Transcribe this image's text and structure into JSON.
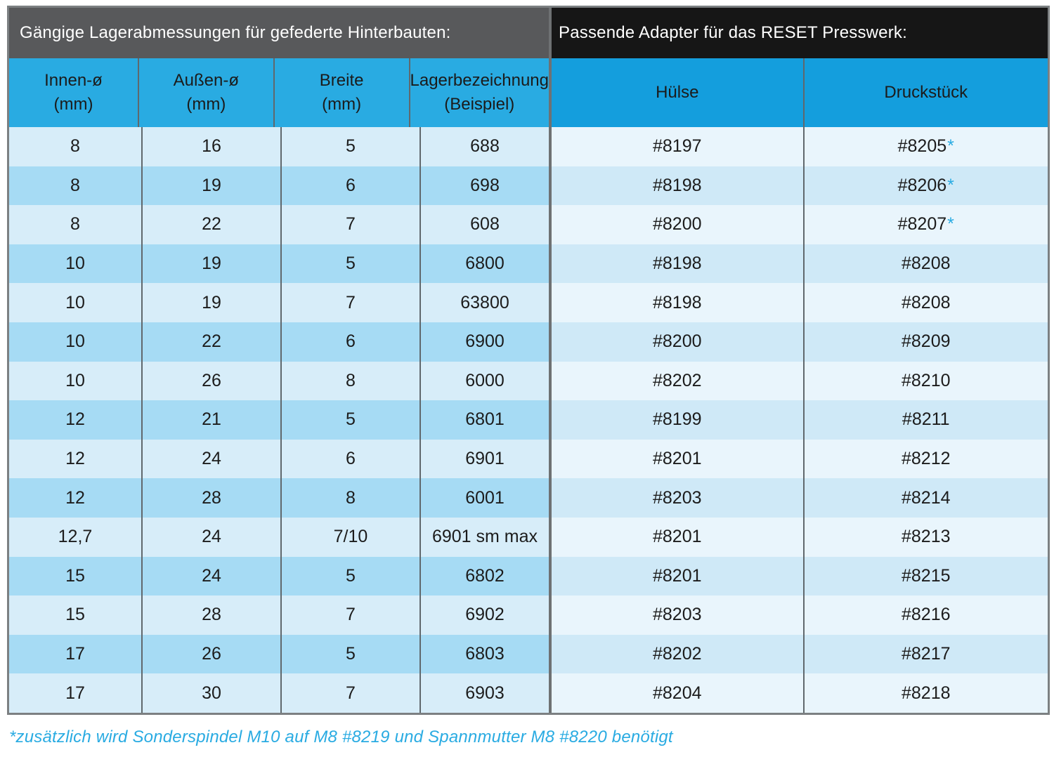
{
  "left_table": {
    "title": "Gängige Lagerabmessungen für gefederte Hinterbauten:",
    "columns": [
      {
        "line1": "Innen-ø",
        "line2": "(mm)"
      },
      {
        "line1": "Außen-ø",
        "line2": "(mm)"
      },
      {
        "line1": "Breite",
        "line2": "(mm)"
      },
      {
        "line1": "Lagerbezeichnung",
        "line2": "(Beispiel)"
      }
    ],
    "rows": [
      [
        "8",
        "16",
        "5",
        "688"
      ],
      [
        "8",
        "19",
        "6",
        "698"
      ],
      [
        "8",
        "22",
        "7",
        "608"
      ],
      [
        "10",
        "19",
        "5",
        "6800"
      ],
      [
        "10",
        "19",
        "7",
        "63800"
      ],
      [
        "10",
        "22",
        "6",
        "6900"
      ],
      [
        "10",
        "26",
        "8",
        "6000"
      ],
      [
        "12",
        "21",
        "5",
        "6801"
      ],
      [
        "12",
        "24",
        "6",
        "6901"
      ],
      [
        "12",
        "28",
        "8",
        "6001"
      ],
      [
        "12,7",
        "24",
        "7/10",
        "6901 sm max"
      ],
      [
        "15",
        "24",
        "5",
        "6802"
      ],
      [
        "15",
        "28",
        "7",
        "6902"
      ],
      [
        "17",
        "26",
        "5",
        "6803"
      ],
      [
        "17",
        "30",
        "7",
        "6903"
      ]
    ]
  },
  "right_table": {
    "title": "Passende Adapter für das RESET Presswerk:",
    "columns": [
      {
        "label": "Hülse"
      },
      {
        "label": "Druckstück"
      }
    ],
    "rows": [
      {
        "huelse": "#8197",
        "druckstueck": "#8205",
        "star": "*"
      },
      {
        "huelse": "#8198",
        "druckstueck": "#8206",
        "star": "*"
      },
      {
        "huelse": "#8200",
        "druckstueck": "#8207",
        "star": "*"
      },
      {
        "huelse": "#8198",
        "druckstueck": "#8208",
        "star": ""
      },
      {
        "huelse": "#8198",
        "druckstueck": "#8208",
        "star": ""
      },
      {
        "huelse": "#8200",
        "druckstueck": "#8209",
        "star": ""
      },
      {
        "huelse": "#8202",
        "druckstueck": "#8210",
        "star": ""
      },
      {
        "huelse": "#8199",
        "druckstueck": "#8211",
        "star": ""
      },
      {
        "huelse": "#8201",
        "druckstueck": "#8212",
        "star": ""
      },
      {
        "huelse": "#8203",
        "druckstueck": "#8214",
        "star": ""
      },
      {
        "huelse": "#8201",
        "druckstueck": "#8213",
        "star": ""
      },
      {
        "huelse": "#8201",
        "druckstueck": "#8215",
        "star": ""
      },
      {
        "huelse": "#8203",
        "druckstueck": "#8216",
        "star": ""
      },
      {
        "huelse": "#8202",
        "druckstueck": "#8217",
        "star": ""
      },
      {
        "huelse": "#8204",
        "druckstueck": "#8218",
        "star": ""
      }
    ]
  },
  "footnote": "*zusätzlich wird Sonderspindel M10 auf M8 #8219 und Spannmutter M8 #8220 benötigt",
  "colors": {
    "left_title_bar": "#58595b",
    "right_title_bar": "#161616",
    "left_column_header": "#29abe2",
    "right_column_header": "#149edd",
    "left_row_odd": "#d7edf9",
    "left_row_even": "#a6dbf4",
    "right_row_odd": "#e9f5fc",
    "right_row_even": "#cfe9f7",
    "accent_cyan": "#29abe2",
    "body_text": "#1c1c1c",
    "frame_border": "#7c8082",
    "cell_separator": "#60686d"
  }
}
